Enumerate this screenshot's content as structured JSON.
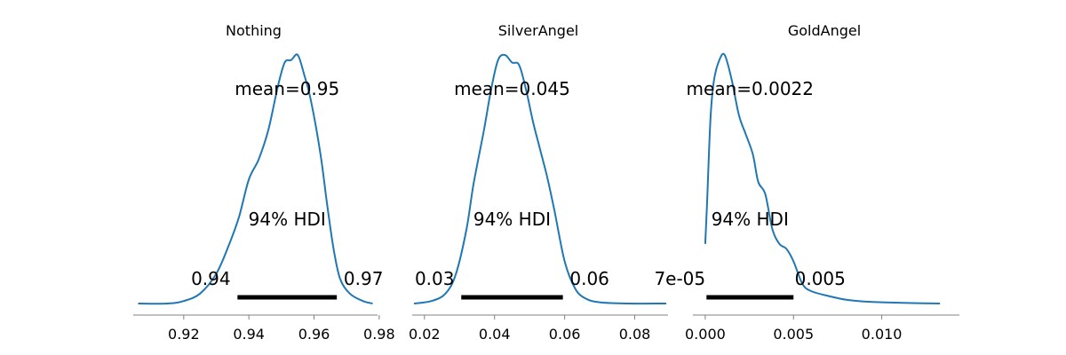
{
  "chart_data": [
    {
      "type": "line",
      "title": "Nothing",
      "mean_label": "mean=0.95",
      "hdi_label": "94% HDI",
      "hdi_low_label": "0.94",
      "hdi_high_label": "0.97",
      "hdi": [
        0.9365,
        0.967
      ],
      "xlim": [
        0.9045,
        0.9795
      ],
      "xticks": [
        0.92,
        0.94,
        0.96,
        0.98
      ],
      "xtick_labels": [
        "0.92",
        "0.94",
        "0.96",
        "0.98"
      ],
      "density_range": [
        0.906,
        0.978
      ],
      "density": [
        [
          0.906,
          0.0
        ],
        [
          0.915,
          0.0
        ],
        [
          0.92,
          0.01
        ],
        [
          0.925,
          0.04
        ],
        [
          0.93,
          0.12
        ],
        [
          0.934,
          0.24
        ],
        [
          0.937,
          0.35
        ],
        [
          0.94,
          0.5
        ],
        [
          0.943,
          0.58
        ],
        [
          0.946,
          0.7
        ],
        [
          0.949,
          0.88
        ],
        [
          0.951,
          0.97
        ],
        [
          0.953,
          0.98
        ],
        [
          0.955,
          1.0
        ],
        [
          0.957,
          0.92
        ],
        [
          0.959,
          0.82
        ],
        [
          0.962,
          0.6
        ],
        [
          0.964,
          0.4
        ],
        [
          0.966,
          0.22
        ],
        [
          0.968,
          0.1
        ],
        [
          0.971,
          0.04
        ],
        [
          0.975,
          0.01
        ],
        [
          0.978,
          0.0
        ]
      ]
    },
    {
      "type": "line",
      "title": "SilverAngel",
      "mean_label": "mean=0.045",
      "hdi_label": "94% HDI",
      "hdi_low_label": "0.03",
      "hdi_high_label": "0.06",
      "hdi": [
        0.0305,
        0.0595
      ],
      "xlim": [
        0.0165,
        0.0895
      ],
      "xticks": [
        0.02,
        0.04,
        0.06,
        0.08
      ],
      "xtick_labels": [
        "0.02",
        "0.04",
        "0.06",
        "0.08"
      ],
      "density_range": [
        0.017,
        0.089
      ],
      "density": [
        [
          0.017,
          0.0
        ],
        [
          0.022,
          0.01
        ],
        [
          0.026,
          0.04
        ],
        [
          0.029,
          0.12
        ],
        [
          0.032,
          0.3
        ],
        [
          0.034,
          0.48
        ],
        [
          0.037,
          0.7
        ],
        [
          0.039,
          0.86
        ],
        [
          0.041,
          0.98
        ],
        [
          0.043,
          1.0
        ],
        [
          0.045,
          0.97
        ],
        [
          0.047,
          0.96
        ],
        [
          0.049,
          0.86
        ],
        [
          0.051,
          0.73
        ],
        [
          0.053,
          0.62
        ],
        [
          0.055,
          0.51
        ],
        [
          0.057,
          0.38
        ],
        [
          0.06,
          0.17
        ],
        [
          0.063,
          0.06
        ],
        [
          0.066,
          0.02
        ],
        [
          0.07,
          0.005
        ],
        [
          0.078,
          0.0
        ],
        [
          0.089,
          0.0
        ]
      ]
    },
    {
      "type": "line",
      "title": "GoldAngel",
      "mean_label": "mean=0.0022",
      "hdi_label": "94% HDI",
      "hdi_low_label": "7e-05",
      "hdi_high_label": "0.005",
      "hdi": [
        7e-05,
        0.005
      ],
      "xlim": [
        -0.0007,
        0.0144
      ],
      "xticks": [
        0.0,
        0.005,
        0.01
      ],
      "xtick_labels": [
        "0.000",
        "0.005",
        "0.010"
      ],
      "density_range": [
        0.0,
        0.0133
      ],
      "density": [
        [
          0.0,
          0.24
        ],
        [
          0.0001,
          0.4
        ],
        [
          0.0003,
          0.75
        ],
        [
          0.0005,
          0.9
        ],
        [
          0.0008,
          0.98
        ],
        [
          0.0011,
          1.0
        ],
        [
          0.0015,
          0.9
        ],
        [
          0.0019,
          0.76
        ],
        [
          0.0023,
          0.68
        ],
        [
          0.0027,
          0.6
        ],
        [
          0.003,
          0.49
        ],
        [
          0.0034,
          0.44
        ],
        [
          0.0038,
          0.3
        ],
        [
          0.0042,
          0.24
        ],
        [
          0.0046,
          0.22
        ],
        [
          0.005,
          0.17
        ],
        [
          0.0055,
          0.08
        ],
        [
          0.006,
          0.05
        ],
        [
          0.007,
          0.03
        ],
        [
          0.008,
          0.015
        ],
        [
          0.009,
          0.008
        ],
        [
          0.01,
          0.005
        ],
        [
          0.0115,
          0.002
        ],
        [
          0.0133,
          0.0
        ]
      ]
    }
  ]
}
